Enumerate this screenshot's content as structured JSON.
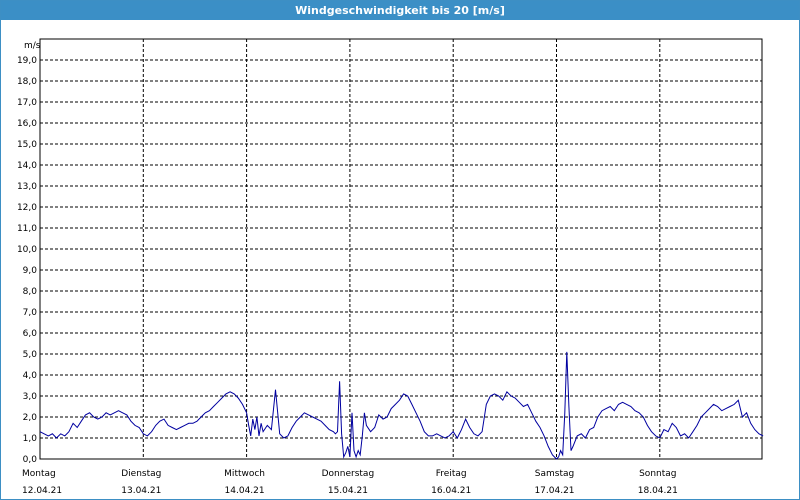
{
  "chart_data": {
    "type": "line",
    "title": "Windgeschwindigkeit bis 20 [m/s]",
    "ylabel": "m/s",
    "ylim": [
      0,
      20
    ],
    "yticks": [
      "0,0",
      "1,0",
      "2,0",
      "3,0",
      "4,0",
      "5,0",
      "6,0",
      "7,0",
      "8,0",
      "9,0",
      "10,0",
      "11,0",
      "12,0",
      "13,0",
      "14,0",
      "15,0",
      "16,0",
      "17,0",
      "18,0",
      "19,0"
    ],
    "days": [
      {
        "name": "Montag",
        "date": "12.04.21"
      },
      {
        "name": "Dienstag",
        "date": "13.04.21"
      },
      {
        "name": "Mittwoch",
        "date": "14.04.21"
      },
      {
        "name": "Donnerstag",
        "date": "15.04.21"
      },
      {
        "name": "Freitag",
        "date": "16.04.21"
      },
      {
        "name": "Samstag",
        "date": "17.04.21"
      },
      {
        "name": "Sonntag",
        "date": "18.04.21"
      }
    ],
    "grid": true,
    "line_color": "#0000a0",
    "series": [
      {
        "x": [
          0.0,
          0.04,
          0.08,
          0.12,
          0.16,
          0.2,
          0.24,
          0.28,
          0.32,
          0.36,
          0.4,
          0.44,
          0.48,
          0.52,
          0.56,
          0.6,
          0.64,
          0.68,
          0.72,
          0.76,
          0.8,
          0.84,
          0.88,
          0.92,
          0.96,
          1.0,
          1.04,
          1.08,
          1.12,
          1.16,
          1.2,
          1.24,
          1.28,
          1.32,
          1.36,
          1.4,
          1.44,
          1.48,
          1.52,
          1.56,
          1.6,
          1.64,
          1.68,
          1.72,
          1.76,
          1.8,
          1.84,
          1.88,
          1.92,
          1.96,
          2.0,
          2.02,
          2.04,
          2.06,
          2.08,
          2.1,
          2.12,
          2.14,
          2.16,
          2.2,
          2.24,
          2.28,
          2.32,
          2.36,
          2.4,
          2.44,
          2.48,
          2.52,
          2.56,
          2.6,
          2.64,
          2.68,
          2.72,
          2.76,
          2.8,
          2.84,
          2.86,
          2.88,
          2.9,
          2.92,
          2.94,
          2.96,
          2.98,
          3.0,
          3.02,
          3.04,
          3.06,
          3.08,
          3.1,
          3.12,
          3.14,
          3.16,
          3.2,
          3.24,
          3.28,
          3.32,
          3.36,
          3.4,
          3.44,
          3.48,
          3.52,
          3.56,
          3.6,
          3.64,
          3.68,
          3.72,
          3.76,
          3.8,
          3.84,
          3.88,
          3.92,
          3.96,
          4.0,
          4.04,
          4.08,
          4.12,
          4.16,
          4.2,
          4.24,
          4.28,
          4.32,
          4.36,
          4.4,
          4.44,
          4.48,
          4.52,
          4.56,
          4.6,
          4.64,
          4.68,
          4.72,
          4.76,
          4.8,
          4.84,
          4.88,
          4.92,
          4.96,
          5.0,
          5.02,
          5.04,
          5.06,
          5.08,
          5.1,
          5.12,
          5.14,
          5.16,
          5.2,
          5.24,
          5.28,
          5.32,
          5.36,
          5.4,
          5.44,
          5.48,
          5.52,
          5.56,
          5.6,
          5.64,
          5.68,
          5.72,
          5.76,
          5.8,
          5.84,
          5.88,
          5.92,
          5.96,
          6.0,
          6.04,
          6.08,
          6.12,
          6.16,
          6.2,
          6.24,
          6.28,
          6.32,
          6.36,
          6.4,
          6.44,
          6.48,
          6.52,
          6.56,
          6.6,
          6.64,
          6.68,
          6.72,
          6.76,
          6.8,
          6.84,
          6.88,
          6.92,
          6.96,
          7.0
        ],
        "y": [
          1.3,
          1.2,
          1.1,
          1.2,
          1.0,
          1.2,
          1.1,
          1.3,
          1.7,
          1.5,
          1.8,
          2.1,
          2.2,
          2.0,
          1.9,
          2.0,
          2.2,
          2.1,
          2.2,
          2.3,
          2.2,
          2.1,
          1.8,
          1.6,
          1.5,
          1.2,
          1.1,
          1.3,
          1.6,
          1.8,
          1.9,
          1.6,
          1.5,
          1.4,
          1.5,
          1.6,
          1.7,
          1.7,
          1.8,
          2.0,
          2.2,
          2.3,
          2.5,
          2.7,
          2.9,
          3.1,
          3.2,
          3.1,
          2.9,
          2.6,
          2.2,
          1.6,
          1.1,
          1.9,
          1.4,
          2.0,
          1.1,
          1.7,
          1.3,
          1.6,
          1.4,
          3.3,
          1.2,
          1.0,
          1.1,
          1.5,
          1.8,
          2.0,
          2.2,
          2.1,
          2.0,
          1.9,
          1.8,
          1.6,
          1.4,
          1.3,
          1.2,
          1.3,
          3.7,
          1.2,
          0.1,
          0.3,
          0.6,
          0.1,
          2.2,
          0.4,
          0.1,
          0.4,
          0.2,
          1.1,
          2.2,
          1.6,
          1.3,
          1.5,
          2.1,
          1.9,
          2.0,
          2.4,
          2.6,
          2.8,
          3.1,
          3.0,
          2.6,
          2.2,
          1.8,
          1.3,
          1.1,
          1.1,
          1.2,
          1.1,
          1.0,
          1.1,
          1.3,
          1.0,
          1.4,
          1.9,
          1.5,
          1.2,
          1.1,
          1.3,
          2.6,
          3.0,
          3.1,
          3.0,
          2.8,
          3.2,
          3.0,
          2.9,
          2.7,
          2.5,
          2.6,
          2.2,
          1.8,
          1.5,
          1.1,
          0.6,
          0.2,
          0.0,
          0.1,
          0.4,
          0.2,
          2.2,
          5.1,
          2.5,
          0.4,
          0.6,
          1.1,
          1.2,
          1.0,
          1.4,
          1.5,
          2.0,
          2.3,
          2.4,
          2.5,
          2.3,
          2.6,
          2.7,
          2.6,
          2.5,
          2.3,
          2.2,
          2.0,
          1.6,
          1.3,
          1.1,
          1.0,
          1.4,
          1.3,
          1.7,
          1.5,
          1.1,
          1.2,
          1.0,
          1.3,
          1.6,
          2.0,
          2.2,
          2.4,
          2.6,
          2.5,
          2.3,
          2.4,
          2.5,
          2.6,
          2.8,
          2.0,
          2.2,
          1.7,
          1.4,
          1.2,
          1.1
        ]
      }
    ]
  }
}
